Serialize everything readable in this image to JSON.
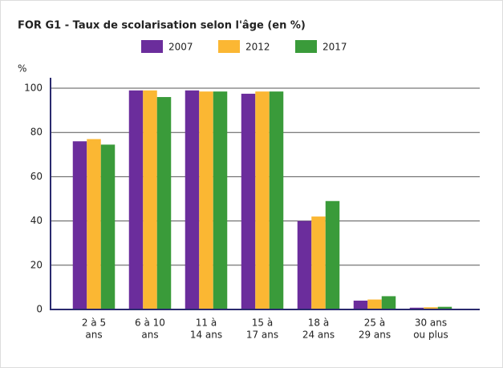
{
  "chart_data": {
    "type": "bar",
    "title": "FOR G1 - Taux de scolarisation selon l'âge (en %)",
    "y_label": "%",
    "categories": [
      [
        "2 à 5",
        "ans"
      ],
      [
        "6 à 10",
        "ans"
      ],
      [
        "11 à",
        "14 ans"
      ],
      [
        "15 à",
        "17 ans"
      ],
      [
        "18 à",
        "24 ans"
      ],
      [
        "25 à",
        "29 ans"
      ],
      [
        "30 ans",
        "ou plus"
      ]
    ],
    "series": [
      {
        "name": "2007",
        "color": "#6b2d9c",
        "values": [
          76,
          99,
          99,
          97.5,
          40,
          4,
          0.8
        ]
      },
      {
        "name": "2012",
        "color": "#fbb733",
        "values": [
          77,
          99,
          98.5,
          98.5,
          42,
          4.5,
          1
        ]
      },
      {
        "name": "2017",
        "color": "#3a9b3a",
        "values": [
          74.5,
          96,
          98.5,
          98.5,
          49,
          6,
          1.2
        ]
      }
    ],
    "ylim": [
      0,
      100
    ],
    "yticks": [
      0,
      20,
      40,
      60,
      80,
      100
    ],
    "grid": true,
    "legend": "top"
  }
}
